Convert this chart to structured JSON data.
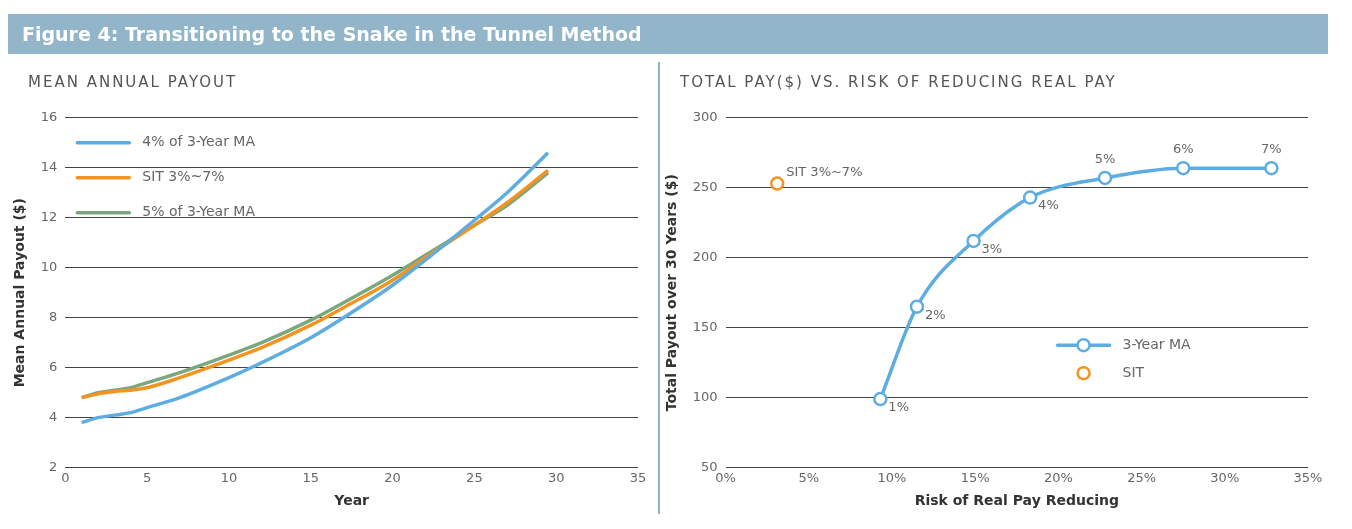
{
  "chart_data": [
    {
      "type": "line",
      "title": "Figure 4: Transitioning to the Snake in the Tunnel Method",
      "subtitle": "MEAN ANNUAL PAYOUT",
      "xlabel": "Year",
      "ylabel": "Mean Annual Payout ($)",
      "x": [
        1,
        2,
        3,
        4,
        5,
        7,
        10,
        12,
        15,
        17,
        20,
        22,
        25,
        27,
        29.5
      ],
      "series": [
        {
          "name": "4% of 3-Year MA",
          "color": "#5dade2",
          "values": [
            3.8,
            4.0,
            4.1,
            4.2,
            4.4,
            4.8,
            5.6,
            6.2,
            7.2,
            8.0,
            9.3,
            10.3,
            11.9,
            13.0,
            14.6
          ]
        },
        {
          "name": "SIT 3%~7%",
          "color": "#f39422",
          "values": [
            4.8,
            4.95,
            5.05,
            5.1,
            5.2,
            5.6,
            6.3,
            6.8,
            7.7,
            8.4,
            9.5,
            10.4,
            11.7,
            12.6,
            13.9
          ]
        },
        {
          "name": "5% of 3-Year MA",
          "color": "#79a87e",
          "values": [
            4.8,
            5.0,
            5.1,
            5.2,
            5.4,
            5.8,
            6.5,
            7.0,
            7.9,
            8.6,
            9.7,
            10.5,
            11.7,
            12.5,
            13.8
          ]
        }
      ],
      "xlim": [
        0,
        35
      ],
      "xticks": [
        0,
        5,
        10,
        15,
        20,
        25,
        30,
        35
      ],
      "ylim": [
        2,
        16
      ],
      "yticks": [
        2,
        4,
        6,
        8,
        10,
        12,
        14,
        16
      ],
      "grid": "y",
      "legend": "top left",
      "marker": "none",
      "line_style": "solid"
    },
    {
      "type": "line",
      "title": "TOTAL PAY($) VS. RISK OF REDUCING REAL PAY",
      "xlabel": "Risk of Real Pay Reducing",
      "ylabel": "Total Payout over 30 Years ($)",
      "series": [
        {
          "name": "3-Year MA",
          "color": "#5dade2",
          "x": [
            9.3,
            11.5,
            14.9,
            18.3,
            22.8,
            27.5,
            32.8
          ],
          "values": [
            99,
            165,
            212,
            243,
            257,
            264,
            264
          ]
        },
        {
          "name": "SIT",
          "type": "scatter",
          "color": "#f39422",
          "x": [
            3.1
          ],
          "values": [
            253
          ]
        }
      ],
      "annotations": [
        {
          "text": "1%",
          "x": 9.3,
          "y": 99
        },
        {
          "text": "2%",
          "x": 11.5,
          "y": 165
        },
        {
          "text": "3%",
          "x": 14.9,
          "y": 212
        },
        {
          "text": "4%",
          "x": 18.3,
          "y": 243
        },
        {
          "text": "5%",
          "x": 22.8,
          "y": 257
        },
        {
          "text": "6%",
          "x": 27.5,
          "y": 264
        },
        {
          "text": "7%",
          "x": 32.8,
          "y": 264
        },
        {
          "text": "SIT 3%~7%",
          "x": 3.1,
          "y": 253
        }
      ],
      "xlim": [
        0,
        35
      ],
      "xticks": [
        {
          "value": 0,
          "label": "0%"
        },
        {
          "value": 5,
          "label": "5%"
        },
        {
          "value": 10,
          "label": "10%"
        },
        {
          "value": 15,
          "label": "15%"
        },
        {
          "value": 20,
          "label": "20%"
        },
        {
          "value": 25,
          "label": "25%"
        },
        {
          "value": 30,
          "label": "30%"
        },
        {
          "value": 35,
          "label": "35%"
        }
      ],
      "ylim": [
        50,
        300
      ],
      "yticks": [
        50,
        100,
        150,
        200,
        250,
        300
      ],
      "grid": "y",
      "legend": "right",
      "marker": "circle",
      "line_style": "solid"
    }
  ]
}
